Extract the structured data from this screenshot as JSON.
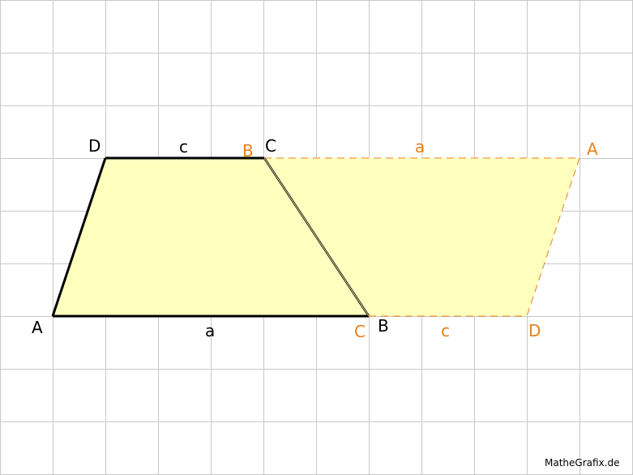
{
  "colors": {
    "grid": "#c8c8c8",
    "fill": "#ffffbe",
    "black": "#000000",
    "orange": "#e8801a"
  },
  "trapezoid": {
    "vertices": {
      "A": "A",
      "B": "B",
      "C": "C",
      "D": "D"
    },
    "sides": {
      "bottom": "a",
      "top": "c"
    }
  },
  "rotated_copy": {
    "vertices": {
      "A": "A",
      "B": "B",
      "C": "C",
      "D": "D"
    },
    "sides": {
      "top": "a",
      "bottom": "c"
    }
  },
  "watermark": "MatheGrafix.de"
}
